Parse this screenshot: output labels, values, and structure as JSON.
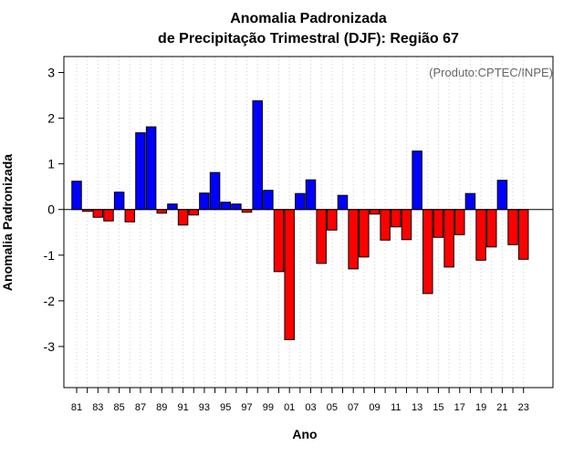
{
  "chart_data": {
    "type": "bar",
    "title": "Anomalia Padronizada",
    "subtitle": "de Precipitação Trimestral (DJF): Região 67",
    "xlabel": "Ano",
    "ylabel": "Anomalia Padronizada",
    "annotation": "(Produto:CPTEC/INPE)",
    "ylim": [
      -3.9,
      3.35
    ],
    "yticks": [
      -3,
      -2,
      -1,
      0,
      1,
      2,
      3
    ],
    "grid": "vertical dotted",
    "positive_color": "#0000ff",
    "negative_color": "#ff0000",
    "categories": [
      "81",
      "82",
      "83",
      "84",
      "85",
      "86",
      "87",
      "88",
      "89",
      "90",
      "91",
      "92",
      "93",
      "94",
      "95",
      "96",
      "97",
      "98",
      "99",
      "00",
      "01",
      "02",
      "03",
      "04",
      "05",
      "06",
      "07",
      "08",
      "09",
      "10",
      "11",
      "12",
      "13",
      "14",
      "15",
      "16",
      "17",
      "18",
      "19",
      "20",
      "21",
      "22",
      "23"
    ],
    "xtick_labels": [
      "81",
      "83",
      "85",
      "87",
      "89",
      "91",
      "93",
      "95",
      "97",
      "99",
      "01",
      "03",
      "05",
      "07",
      "09",
      "11",
      "13",
      "15",
      "17",
      "19",
      "21",
      "23"
    ],
    "values": [
      0.62,
      -0.04,
      -0.17,
      -0.25,
      0.38,
      -0.27,
      1.68,
      1.81,
      -0.08,
      0.12,
      -0.34,
      -0.12,
      0.36,
      0.81,
      0.16,
      0.12,
      -0.06,
      2.38,
      0.42,
      -1.36,
      -2.85,
      0.35,
      0.65,
      -1.18,
      -0.45,
      0.31,
      -1.3,
      -1.04,
      -0.1,
      -0.67,
      -0.38,
      -0.66,
      1.28,
      -1.84,
      -0.61,
      -1.26,
      -0.55,
      0.35,
      -1.11,
      -0.82,
      0.64,
      -0.77,
      -1.09
    ]
  }
}
